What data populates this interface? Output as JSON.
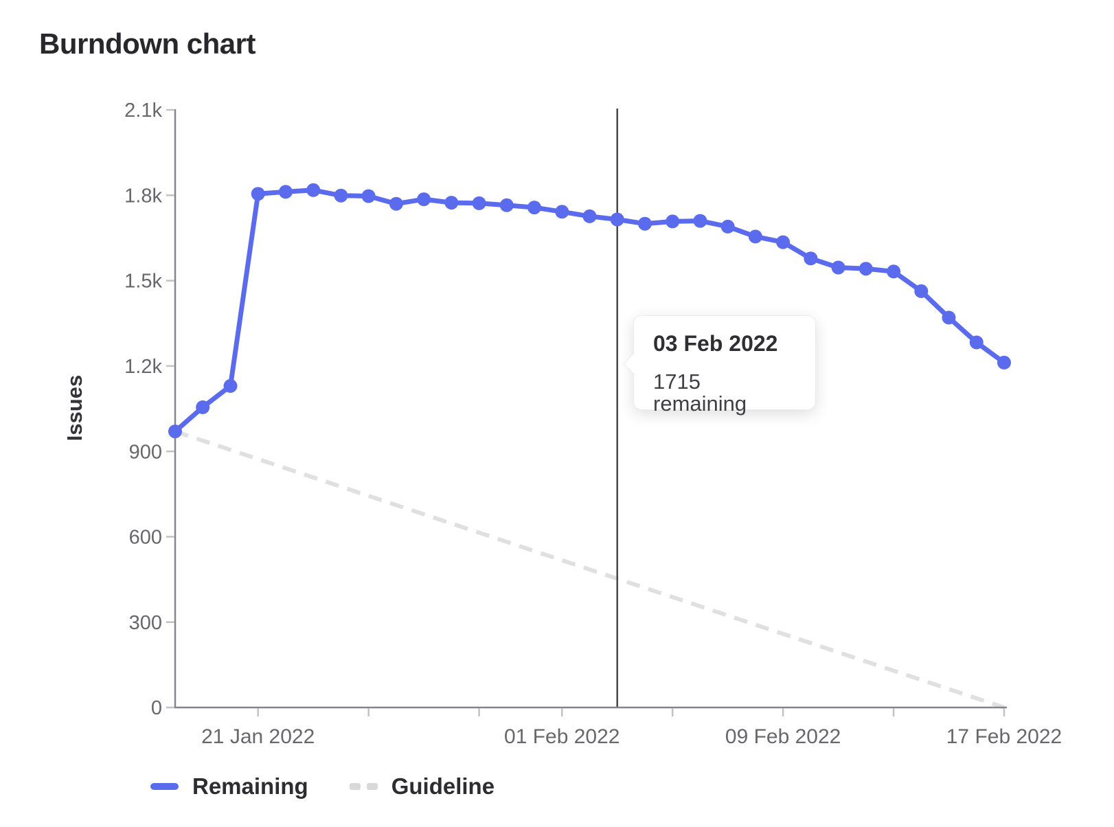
{
  "page": {
    "title": "Burndown chart"
  },
  "chart_data": {
    "type": "line",
    "title": "Burndown chart",
    "xlabel": "",
    "ylabel": "Issues",
    "ylim": [
      0,
      2100
    ],
    "grid": false,
    "legend_position": "bottom",
    "y_ticks": [
      {
        "value": 0,
        "label": "0"
      },
      {
        "value": 300,
        "label": "300"
      },
      {
        "value": 600,
        "label": "600"
      },
      {
        "value": 900,
        "label": "900"
      },
      {
        "value": 1200,
        "label": "1.2k"
      },
      {
        "value": 1500,
        "label": "1.5k"
      },
      {
        "value": 1800,
        "label": "1.8k"
      },
      {
        "value": 2100,
        "label": "2.1k"
      }
    ],
    "x_dates": [
      "18 Jan 2022",
      "19 Jan 2022",
      "20 Jan 2022",
      "21 Jan 2022",
      "22 Jan 2022",
      "23 Jan 2022",
      "24 Jan 2022",
      "25 Jan 2022",
      "26 Jan 2022",
      "27 Jan 2022",
      "28 Jan 2022",
      "29 Jan 2022",
      "30 Jan 2022",
      "31 Jan 2022",
      "01 Feb 2022",
      "02 Feb 2022",
      "03 Feb 2022",
      "04 Feb 2022",
      "05 Feb 2022",
      "06 Feb 2022",
      "07 Feb 2022",
      "08 Feb 2022",
      "09 Feb 2022",
      "10 Feb 2022",
      "11 Feb 2022",
      "12 Feb 2022",
      "13 Feb 2022",
      "14 Feb 2022",
      "15 Feb 2022",
      "16 Feb 2022",
      "17 Feb 2022"
    ],
    "x_tick_dates": [
      "21 Jan 2022",
      "25 Jan 2022",
      "29 Jan 2022",
      "01 Feb 2022",
      "05 Feb 2022",
      "09 Feb 2022",
      "13 Feb 2022",
      "17 Feb 2022"
    ],
    "x_label_dates": [
      "21 Jan 2022",
      "01 Feb 2022",
      "09 Feb 2022",
      "17 Feb 2022"
    ],
    "series": [
      {
        "name": "Remaining",
        "color": "#5b6bee",
        "style": "solid",
        "values": [
          970,
          1055,
          1130,
          1805,
          1812,
          1818,
          1799,
          1797,
          1770,
          1786,
          1774,
          1772,
          1765,
          1757,
          1742,
          1726,
          1715,
          1700,
          1708,
          1710,
          1690,
          1655,
          1635,
          1578,
          1546,
          1542,
          1532,
          1463,
          1370,
          1283,
          1212
        ]
      }
    ],
    "guideline": {
      "name": "Guideline",
      "color": "#e0e0e0",
      "style": "dashed",
      "start_value": 970,
      "end_value": 0
    },
    "crosshair_date": "03 Feb 2022"
  },
  "tooltip": {
    "title": "03 Feb 2022",
    "body": "1715 remaining"
  },
  "legend": {
    "items": [
      {
        "label": "Remaining",
        "style": "solid",
        "color": "#5b6bee"
      },
      {
        "label": "Guideline",
        "style": "dashed",
        "color": "#d9d9d9"
      }
    ]
  },
  "colors": {
    "series_blue": "#5b6bee",
    "guideline_gray": "#e0e0e0",
    "axis": "#84848c",
    "tick": "#c2c2c6",
    "tick_text": "#67676c",
    "crosshair": "#47474b",
    "title_text": "#28282c"
  }
}
